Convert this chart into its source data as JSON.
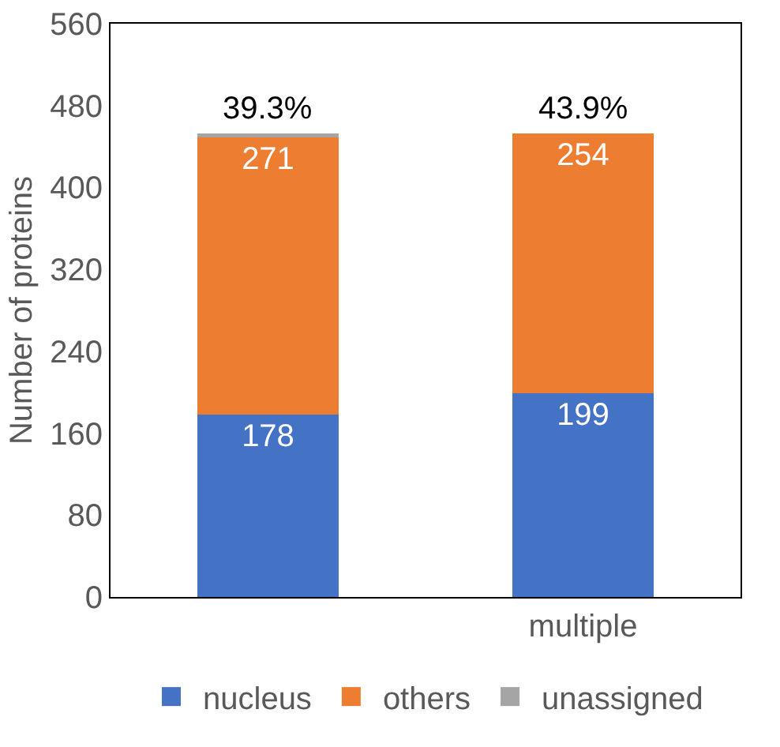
{
  "chart_data": {
    "type": "bar",
    "stacked": true,
    "ylabel": "Number of proteins",
    "categories": [
      null,
      "multiple"
    ],
    "series": [
      {
        "name": "nucleus",
        "color": "#4472c4",
        "values": [
          178,
          199
        ],
        "value_labels": [
          "178",
          "199"
        ]
      },
      {
        "name": "others",
        "color": "#ed7d31",
        "values": [
          271,
          254
        ],
        "value_labels": [
          "271",
          "254"
        ]
      },
      {
        "name": "unassigned",
        "color": "#a5a5a5",
        "values": [
          4,
          0
        ],
        "value_labels": [
          null,
          null
        ]
      }
    ],
    "annotations": [
      "39.3%",
      "43.9%"
    ],
    "ylim": [
      0,
      560
    ],
    "yticks": [
      0,
      80,
      160,
      240,
      320,
      400,
      480,
      560
    ],
    "grid": false,
    "legend": "bottom"
  }
}
